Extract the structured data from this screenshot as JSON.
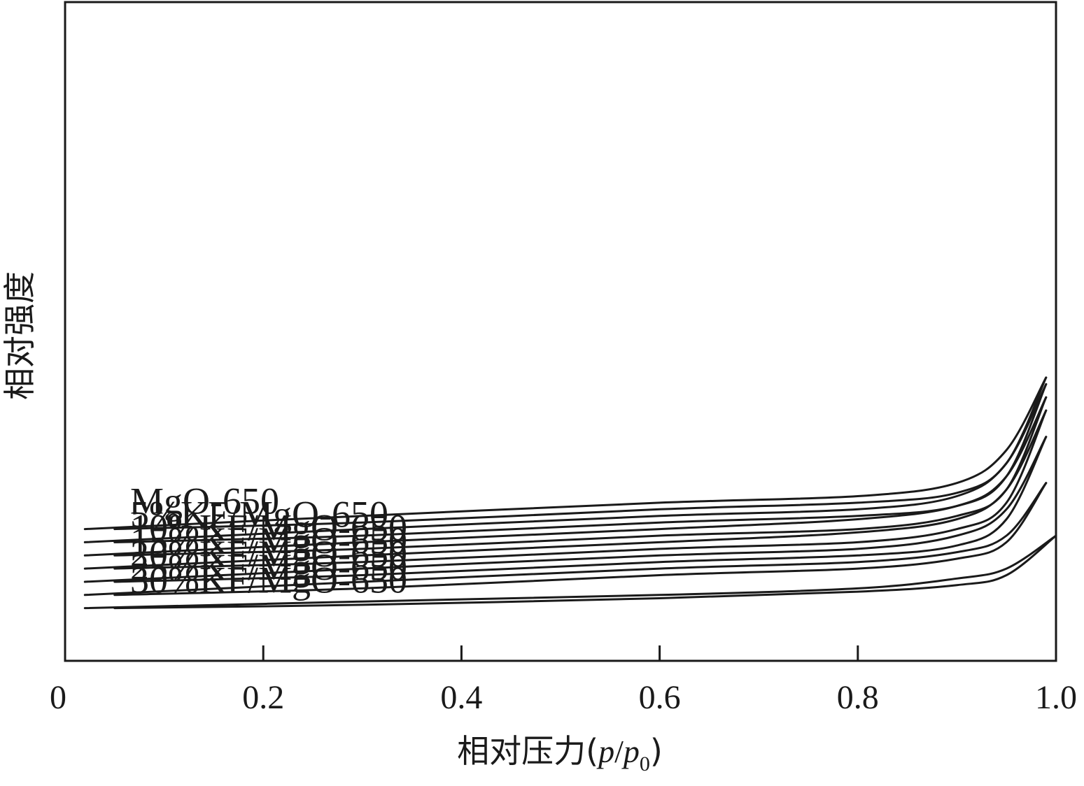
{
  "chart_data": {
    "type": "line",
    "xlabel": "相对压力(p/p0)",
    "xlabel_parts": {
      "main": "相对压力(",
      "p1": "p",
      "slash": "/",
      "p2": "p",
      "sub": "0",
      "close": ")"
    },
    "ylabel": "相对强度",
    "xlim": [
      0,
      1.0
    ],
    "x_ticks": [
      "0",
      "0.2",
      "0.4",
      "0.6",
      "0.8",
      "1.0"
    ],
    "x_tick_values": [
      0,
      0.2,
      0.4,
      0.6,
      0.8,
      1.0
    ],
    "y_ticks": [],
    "grid": false,
    "series": [
      {
        "name": "MgO-650",
        "adsorption": [
          [
            0.02,
            0.8
          ],
          [
            0.3,
            0.78
          ],
          [
            0.6,
            0.76
          ],
          [
            0.8,
            0.75
          ],
          [
            0.9,
            0.73
          ],
          [
            0.95,
            0.68
          ],
          [
            0.99,
            0.57
          ]
        ],
        "desorption": [
          [
            0.05,
            0.8
          ],
          [
            0.3,
            0.79
          ],
          [
            0.6,
            0.77
          ],
          [
            0.8,
            0.76
          ],
          [
            0.9,
            0.745
          ],
          [
            0.95,
            0.7
          ]
        ]
      },
      {
        "name": "5%KF/MgO-650",
        "adsorption": [
          [
            0.02,
            0.82
          ],
          [
            0.3,
            0.8
          ],
          [
            0.6,
            0.78
          ],
          [
            0.8,
            0.77
          ],
          [
            0.9,
            0.75
          ],
          [
            0.95,
            0.7
          ],
          [
            0.99,
            0.58
          ]
        ],
        "desorption": [
          [
            0.05,
            0.82
          ],
          [
            0.3,
            0.81
          ],
          [
            0.6,
            0.79
          ],
          [
            0.8,
            0.78
          ],
          [
            0.9,
            0.765
          ],
          [
            0.95,
            0.72
          ]
        ]
      },
      {
        "name": "10%KF/MgO-650",
        "adsorption": [
          [
            0.02,
            0.84
          ],
          [
            0.3,
            0.82
          ],
          [
            0.6,
            0.8
          ],
          [
            0.8,
            0.785
          ],
          [
            0.9,
            0.765
          ],
          [
            0.95,
            0.72
          ],
          [
            0.99,
            0.6
          ]
        ],
        "desorption": [
          [
            0.05,
            0.84
          ],
          [
            0.3,
            0.83
          ],
          [
            0.6,
            0.81
          ],
          [
            0.8,
            0.8
          ],
          [
            0.9,
            0.78
          ],
          [
            0.95,
            0.74
          ]
        ]
      },
      {
        "name": "15%KF/MgO-650",
        "adsorption": [
          [
            0.02,
            0.86
          ],
          [
            0.3,
            0.84
          ],
          [
            0.6,
            0.82
          ],
          [
            0.8,
            0.805
          ],
          [
            0.9,
            0.785
          ],
          [
            0.95,
            0.74
          ],
          [
            0.99,
            0.62
          ]
        ],
        "desorption": [
          [
            0.05,
            0.86
          ],
          [
            0.3,
            0.85
          ],
          [
            0.6,
            0.83
          ],
          [
            0.8,
            0.82
          ],
          [
            0.9,
            0.8
          ],
          [
            0.95,
            0.76
          ]
        ]
      },
      {
        "name": "20%KF/MgO-650",
        "adsorption": [
          [
            0.02,
            0.88
          ],
          [
            0.3,
            0.86
          ],
          [
            0.6,
            0.84
          ],
          [
            0.8,
            0.83
          ],
          [
            0.9,
            0.81
          ],
          [
            0.95,
            0.77
          ],
          [
            0.99,
            0.66
          ]
        ],
        "desorption": [
          [
            0.05,
            0.88
          ],
          [
            0.3,
            0.87
          ],
          [
            0.6,
            0.85
          ],
          [
            0.8,
            0.84
          ],
          [
            0.9,
            0.825
          ],
          [
            0.95,
            0.785
          ]
        ]
      },
      {
        "name": "25%KF/MgO-650",
        "adsorption": [
          [
            0.02,
            0.9
          ],
          [
            0.3,
            0.88
          ],
          [
            0.6,
            0.86
          ],
          [
            0.8,
            0.85
          ],
          [
            0.9,
            0.835
          ],
          [
            0.95,
            0.81
          ],
          [
            0.99,
            0.73
          ]
        ],
        "desorption": [
          [
            0.05,
            0.9
          ],
          [
            0.3,
            0.89
          ],
          [
            0.6,
            0.87
          ],
          [
            0.8,
            0.86
          ],
          [
            0.9,
            0.845
          ],
          [
            0.95,
            0.82
          ]
        ]
      },
      {
        "name": "30%KF/MgO-650",
        "adsorption": [
          [
            0.02,
            0.92
          ],
          [
            0.3,
            0.91
          ],
          [
            0.6,
            0.9
          ],
          [
            0.8,
            0.89
          ],
          [
            0.9,
            0.875
          ],
          [
            0.95,
            0.86
          ],
          [
            1.0,
            0.81
          ]
        ],
        "desorption": [
          [
            0.05,
            0.92
          ],
          [
            0.3,
            0.915
          ],
          [
            0.6,
            0.905
          ],
          [
            0.8,
            0.895
          ],
          [
            0.9,
            0.885
          ],
          [
            0.95,
            0.87
          ]
        ]
      }
    ]
  }
}
